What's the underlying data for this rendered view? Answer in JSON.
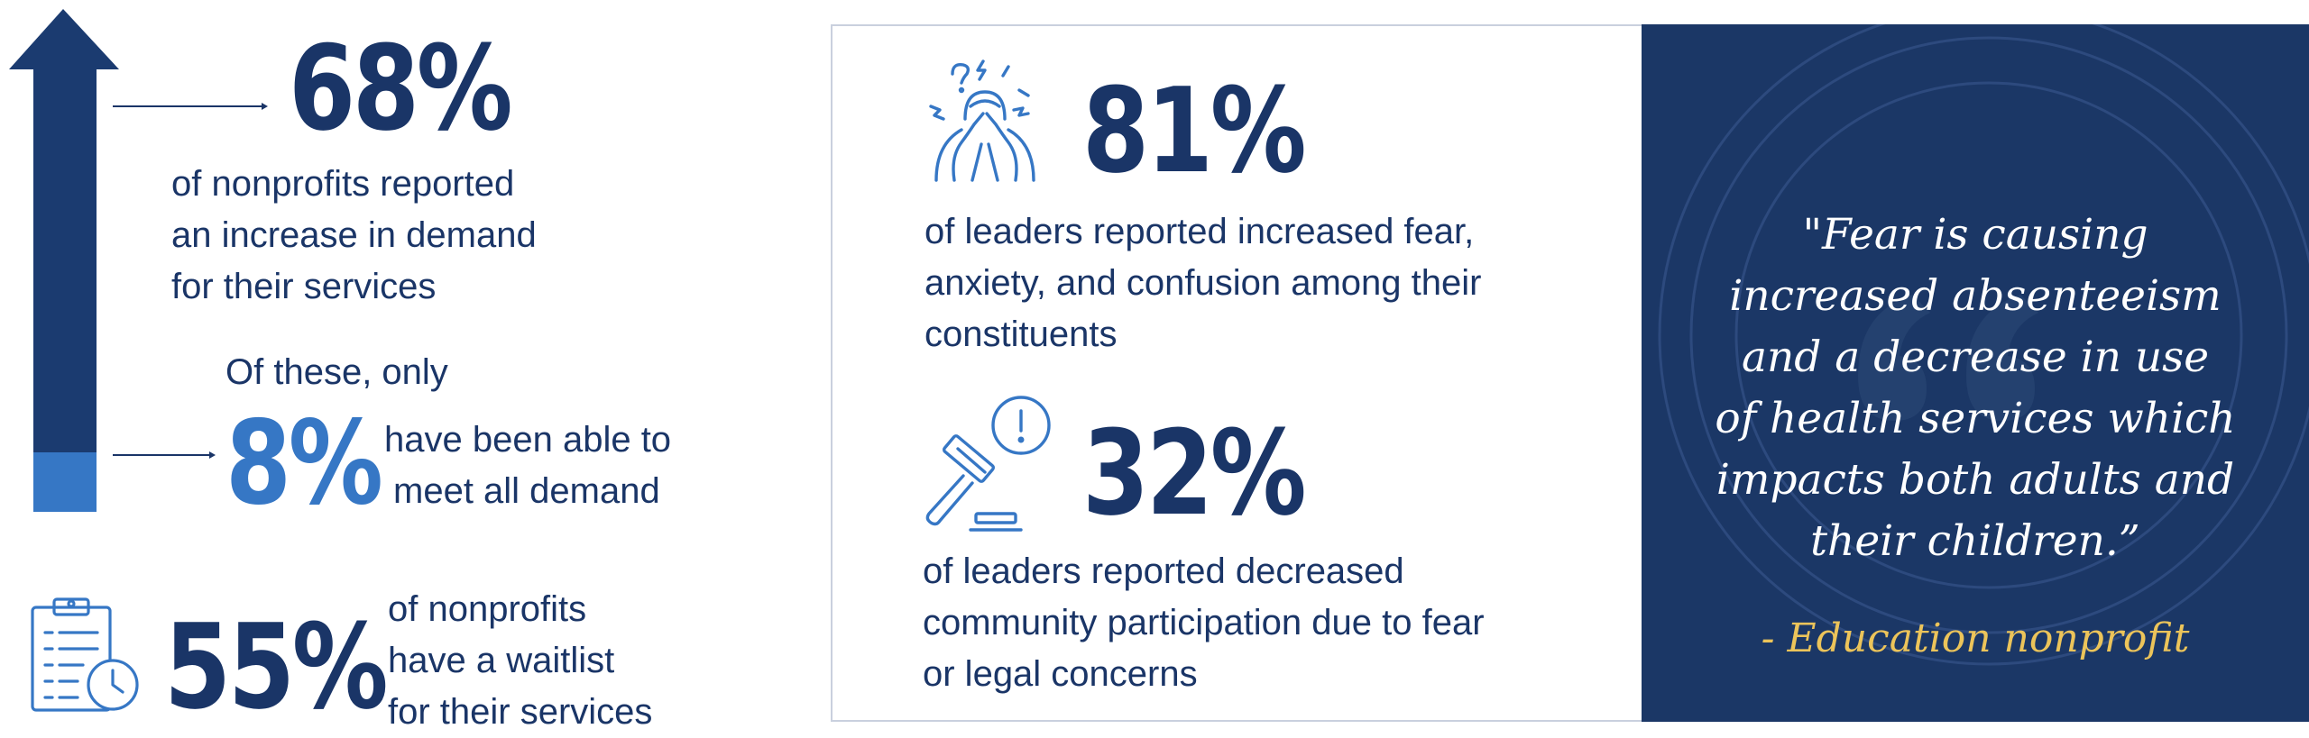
{
  "stats_left": {
    "increase_demand": {
      "percent": "68%",
      "lines": [
        "of nonprofits reported",
        "an increase in demand",
        "for their services"
      ]
    },
    "met_demand": {
      "lead": "Of these, only",
      "percent": "8%",
      "lines": [
        "have been able to",
        "meet all demand"
      ]
    },
    "waitlist": {
      "percent": "55%",
      "lines": [
        "of nonprofits",
        "have a waitlist",
        "for their services"
      ]
    }
  },
  "stats_center": {
    "fear": {
      "percent": "81%",
      "lines": [
        "of leaders reported increased fear,",
        "anxiety, and confusion among their",
        "constituents"
      ]
    },
    "participation": {
      "percent": "32%",
      "lines": [
        "of leaders reported decreased",
        "community participation due to fear",
        "or legal concerns"
      ]
    }
  },
  "quote": {
    "text": "\"Fear is causing\nincreased absenteeism\nand a decrease in use\nof health services which\nimpacts both adults and\ntheir children.”",
    "attribution": "- Education nonprofit"
  },
  "icons": {
    "arrow": "up-arrow-icon",
    "clipboard": "clipboard-clock-icon",
    "fear": "distressed-person-icon",
    "gavel": "gavel-alert-icon"
  },
  "colors": {
    "navy": "#1a3567",
    "accent_blue": "#3677c5",
    "quote_bg": "#1b3766",
    "gold": "#ecc45a"
  }
}
